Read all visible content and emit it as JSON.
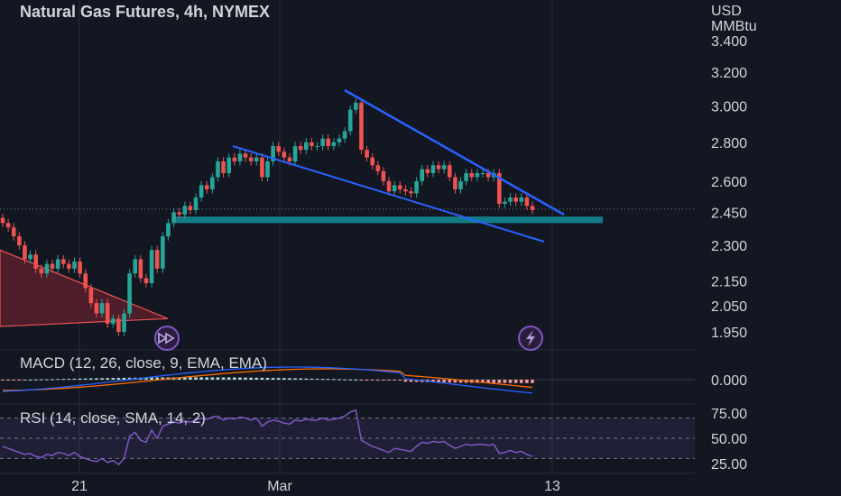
{
  "header": {
    "title": "Natural Gas Futures, 4h, NYMEX",
    "currency": "USD",
    "unit": "MMBtu"
  },
  "colors": {
    "background": "#131722",
    "up": "#26a69a",
    "down": "#ef5350",
    "trendline": "#2962ff",
    "support_zone": "#127d88",
    "macd_line": "#2962ff",
    "signal_line": "#ff6d00",
    "rsi_line": "#7e57c2"
  },
  "icons": [
    "fast-forward-icon",
    "lightning-icon"
  ],
  "chart_data": [
    {
      "type": "candlestick",
      "title": "Natural Gas Futures, 4h, NYMEX",
      "ylabel": "USD MMBtu",
      "y_ticks": [
        "3.400",
        "3.200",
        "3.000",
        "2.800",
        "2.600",
        "2.450",
        "2.300",
        "2.150",
        "2.050",
        "1.950"
      ],
      "y_tick_values": [
        3.4,
        3.2,
        3.0,
        2.8,
        2.6,
        2.45,
        2.3,
        2.15,
        2.05,
        1.95
      ],
      "ylim": [
        1.9,
        3.5
      ],
      "log_scale": true,
      "x_ticks": [
        "21",
        "Mar",
        "13"
      ],
      "close": [
        2.4,
        2.38,
        2.34,
        2.3,
        2.24,
        2.26,
        2.2,
        2.18,
        2.22,
        2.2,
        2.24,
        2.22,
        2.2,
        2.23,
        2.18,
        2.12,
        2.06,
        2.02,
        2.06,
        1.98,
        2.0,
        1.95,
        2.02,
        2.18,
        2.24,
        2.16,
        2.14,
        2.28,
        2.2,
        2.34,
        2.4,
        2.45,
        2.44,
        2.48,
        2.46,
        2.52,
        2.58,
        2.56,
        2.62,
        2.7,
        2.64,
        2.72,
        2.7,
        2.74,
        2.72,
        2.7,
        2.72,
        2.62,
        2.7,
        2.78,
        2.75,
        2.72,
        2.7,
        2.78,
        2.76,
        2.8,
        2.78,
        2.78,
        2.82,
        2.78,
        2.8,
        2.82,
        2.86,
        2.98,
        3.02,
        2.76,
        2.72,
        2.68,
        2.65,
        2.6,
        2.55,
        2.58,
        2.56,
        2.55,
        2.54,
        2.6,
        2.66,
        2.64,
        2.68,
        2.66,
        2.68,
        2.62,
        2.56,
        2.6,
        2.64,
        2.62,
        2.64,
        2.64,
        2.62,
        2.64,
        2.49,
        2.5,
        2.52,
        2.5,
        2.52,
        2.48,
        2.46
      ],
      "last_price": 2.465,
      "support_zone": [
        2.4,
        2.43
      ],
      "annotations": [
        "descending wedge trendlines",
        "support zone"
      ]
    },
    {
      "type": "line",
      "title": "MACD (12, 26, close, 9, EMA, EMA)",
      "y_ticks": [
        "0.000"
      ],
      "series": [
        "MACD",
        "Signal",
        "Histogram"
      ]
    },
    {
      "type": "line",
      "title": "RSI (14, close, SMA, 14, 2)",
      "y_ticks": [
        "75.00",
        "50.00",
        "25.00"
      ],
      "ylim": [
        20,
        80
      ],
      "bands": [
        30,
        70
      ],
      "rsi": [
        42,
        40,
        38,
        36,
        34,
        35,
        32,
        31,
        34,
        33,
        36,
        35,
        33,
        36,
        32,
        30,
        28,
        27,
        30,
        26,
        28,
        24,
        30,
        52,
        56,
        48,
        46,
        58,
        50,
        62,
        64,
        66,
        65,
        67,
        66,
        68,
        70,
        69,
        71,
        72,
        68,
        70,
        69,
        71,
        70,
        68,
        70,
        62,
        66,
        68,
        67,
        65,
        64,
        68,
        67,
        69,
        68,
        68,
        70,
        68,
        69,
        70,
        72,
        76,
        78,
        48,
        45,
        42,
        40,
        38,
        36,
        40,
        39,
        38,
        37,
        42,
        46,
        45,
        47,
        46,
        47,
        43,
        40,
        42,
        44,
        43,
        44,
        44,
        43,
        44,
        35,
        36,
        38,
        36,
        37,
        34,
        32
      ]
    }
  ]
}
